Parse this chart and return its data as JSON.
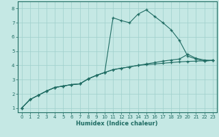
{
  "xlabel": "Humidex (Indice chaleur)",
  "ylabel": "",
  "xlim": [
    -0.5,
    23.5
  ],
  "ylim": [
    0.7,
    8.5
  ],
  "xticks": [
    0,
    1,
    2,
    3,
    4,
    5,
    6,
    7,
    8,
    9,
    10,
    11,
    12,
    13,
    14,
    15,
    16,
    17,
    18,
    19,
    20,
    21,
    22,
    23
  ],
  "yticks": [
    1,
    2,
    3,
    4,
    5,
    6,
    7,
    8
  ],
  "bg_color": "#c5e8e4",
  "line_color": "#1e6b62",
  "grid_color": "#9ecfcb",
  "line1_x": [
    0,
    1,
    2,
    3,
    4,
    5,
    6,
    7,
    8,
    9,
    10,
    11,
    12,
    13,
    14,
    15,
    16,
    17,
    18,
    19,
    20,
    21,
    22,
    23
  ],
  "line1_y": [
    1.0,
    1.6,
    1.9,
    2.2,
    2.45,
    2.55,
    2.65,
    2.7,
    3.05,
    3.3,
    3.5,
    3.7,
    3.8,
    3.9,
    4.0,
    4.05,
    4.1,
    4.15,
    4.2,
    4.25,
    4.28,
    4.3,
    4.32,
    4.35
  ],
  "line2_x": [
    0,
    1,
    2,
    3,
    4,
    5,
    6,
    7,
    8,
    9,
    10,
    11,
    12,
    13,
    14,
    15,
    16,
    17,
    18,
    19,
    20,
    21,
    22,
    23
  ],
  "line2_y": [
    1.0,
    1.6,
    1.9,
    2.2,
    2.45,
    2.55,
    2.65,
    2.7,
    3.05,
    3.3,
    3.5,
    7.35,
    7.15,
    7.0,
    7.6,
    7.9,
    7.45,
    7.0,
    6.5,
    5.75,
    4.65,
    4.45,
    4.3,
    4.35
  ],
  "line3_x": [
    0,
    1,
    2,
    3,
    4,
    5,
    6,
    7,
    8,
    9,
    10,
    11,
    12,
    13,
    14,
    15,
    16,
    17,
    18,
    19,
    20,
    21,
    22,
    23
  ],
  "line3_y": [
    1.0,
    1.6,
    1.9,
    2.2,
    2.45,
    2.55,
    2.65,
    2.7,
    3.05,
    3.3,
    3.5,
    3.7,
    3.8,
    3.9,
    4.0,
    4.1,
    4.2,
    4.3,
    4.38,
    4.45,
    4.78,
    4.5,
    4.38,
    4.35
  ],
  "fig_width": 3.2,
  "fig_height": 2.0,
  "dpi": 100
}
